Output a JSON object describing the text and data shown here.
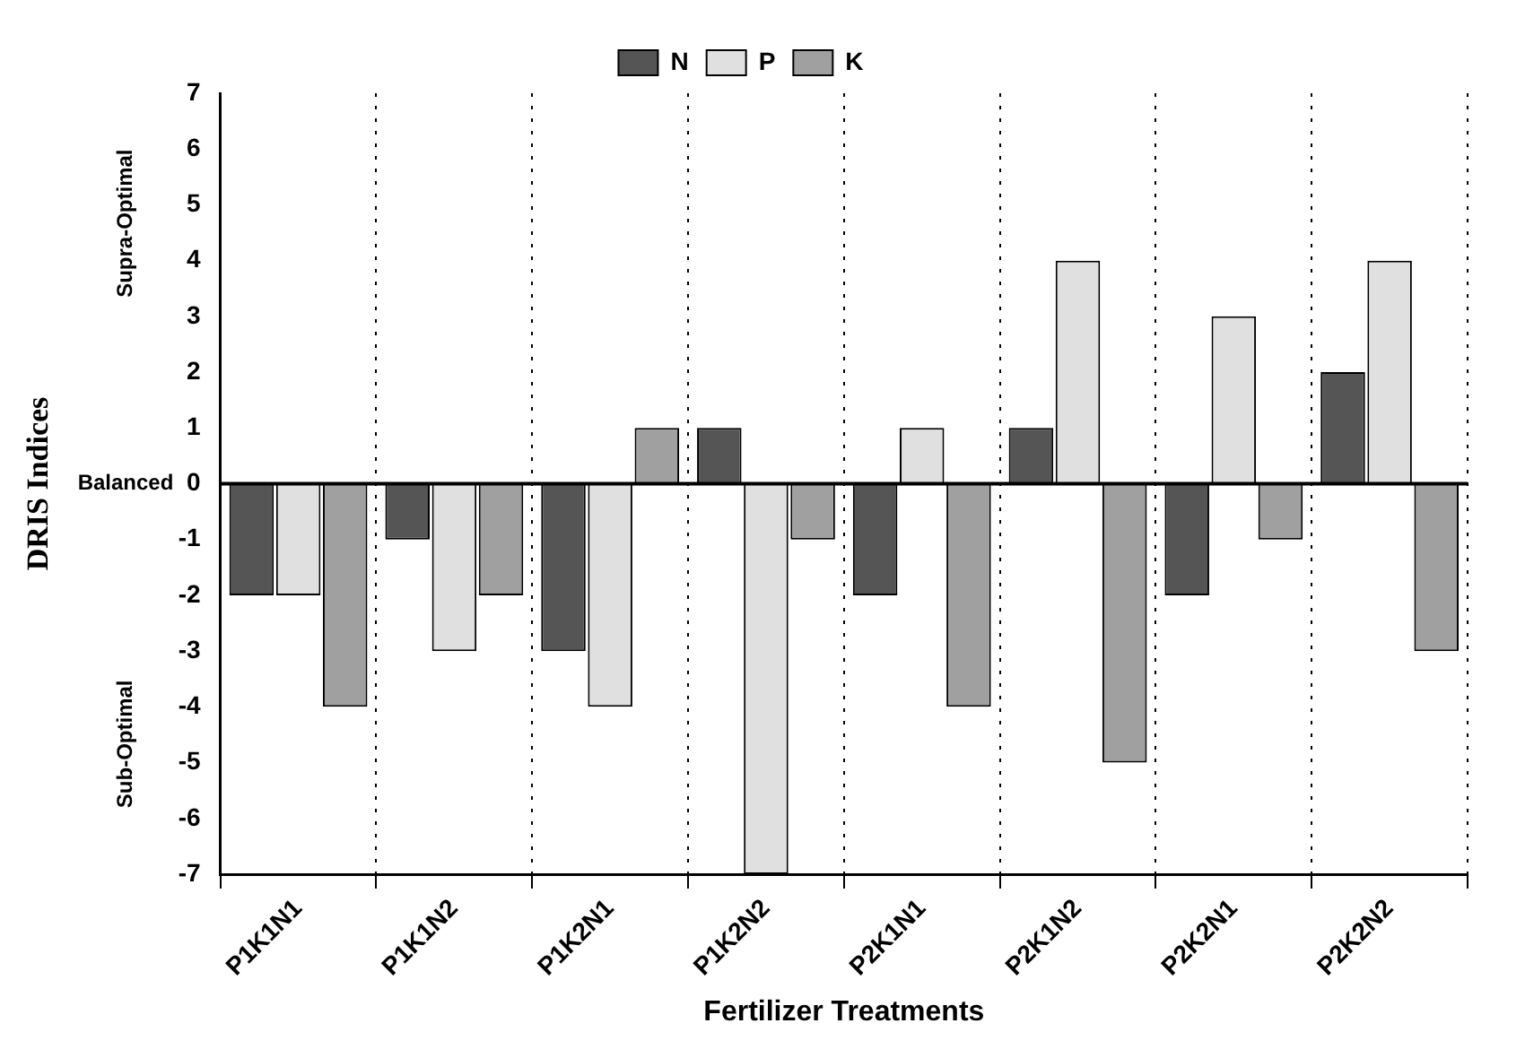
{
  "chart_data": {
    "type": "bar",
    "xlabel": "Fertilizer Treatments",
    "ylabel": "DRIS Indices",
    "categories": [
      "P1K1N1",
      "P1K1N2",
      "P1K2N1",
      "P1K2N2",
      "P2K1N1",
      "P2K1N2",
      "P2K2N1",
      "P2K2N2"
    ],
    "series": [
      {
        "name": "N",
        "color": "#555555",
        "values": [
          -2,
          -1,
          -3,
          1,
          -2,
          1,
          -2,
          2
        ]
      },
      {
        "name": "P",
        "color": "#e0e0e0",
        "values": [
          -2,
          -3,
          -4,
          -7,
          1,
          4,
          3,
          4
        ]
      },
      {
        "name": "K",
        "color": "#a0a0a0",
        "values": [
          -4,
          -2,
          1,
          -1,
          -4,
          -5,
          -1,
          -3
        ]
      }
    ],
    "ylim": [
      -7,
      7
    ],
    "yticks": [
      -7,
      -6,
      -5,
      -4,
      -3,
      -2,
      -1,
      0,
      1,
      2,
      3,
      4,
      5,
      6,
      7
    ],
    "annotations": [
      "Supra-Optimal",
      "Balanced",
      "Sub-Optimal"
    ],
    "ref_lines": [
      {
        "axis": "y",
        "value": 0,
        "color": "#000000"
      }
    ],
    "grid": "x",
    "legend": "top"
  }
}
